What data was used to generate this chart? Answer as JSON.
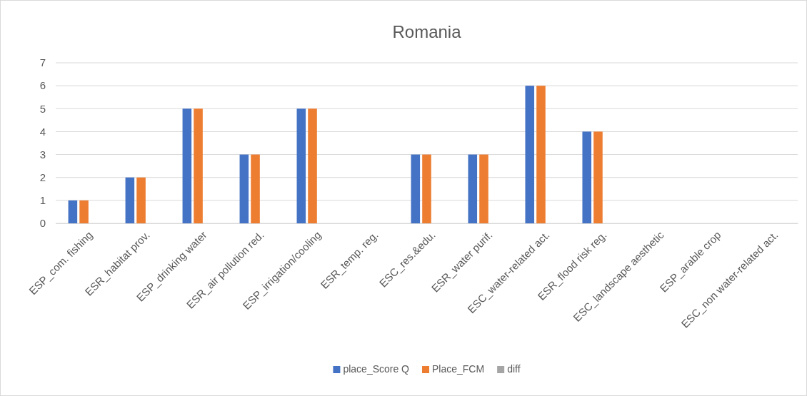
{
  "chart_data": {
    "type": "bar",
    "title": "Romania",
    "categories": [
      "ESP_com. fishing",
      "ESR_habitat prov.",
      "ESP_drinking water",
      "ESR_air pollution red.",
      "ESP_irrigation/cooling",
      "ESR_temp. reg.",
      "ESC_res.&edu.",
      "ESR_water purif.",
      "ESC_water-related act.",
      "ESR_flood risk reg.",
      "ESC_landscape aesthetic",
      "ESP_arable crop",
      "ESC_non water-related act."
    ],
    "series": [
      {
        "name": "place_Score Q",
        "color": "#4472c4",
        "values": [
          1,
          2,
          5,
          3,
          5,
          null,
          3,
          3,
          6,
          4,
          null,
          null,
          null
        ]
      },
      {
        "name": "Place_FCM",
        "color": "#ed7d31",
        "values": [
          1,
          2,
          5,
          3,
          5,
          null,
          3,
          3,
          6,
          4,
          null,
          null,
          null
        ]
      },
      {
        "name": "diff",
        "color": "#a5a5a5",
        "values": [
          0,
          0,
          0,
          0,
          0,
          null,
          0,
          0,
          0,
          0,
          null,
          null,
          null
        ]
      }
    ],
    "ylim": [
      0,
      7
    ],
    "yticks": [
      0,
      1,
      2,
      3,
      4,
      5,
      6,
      7
    ],
    "grid": "y",
    "legend": "bottom"
  }
}
